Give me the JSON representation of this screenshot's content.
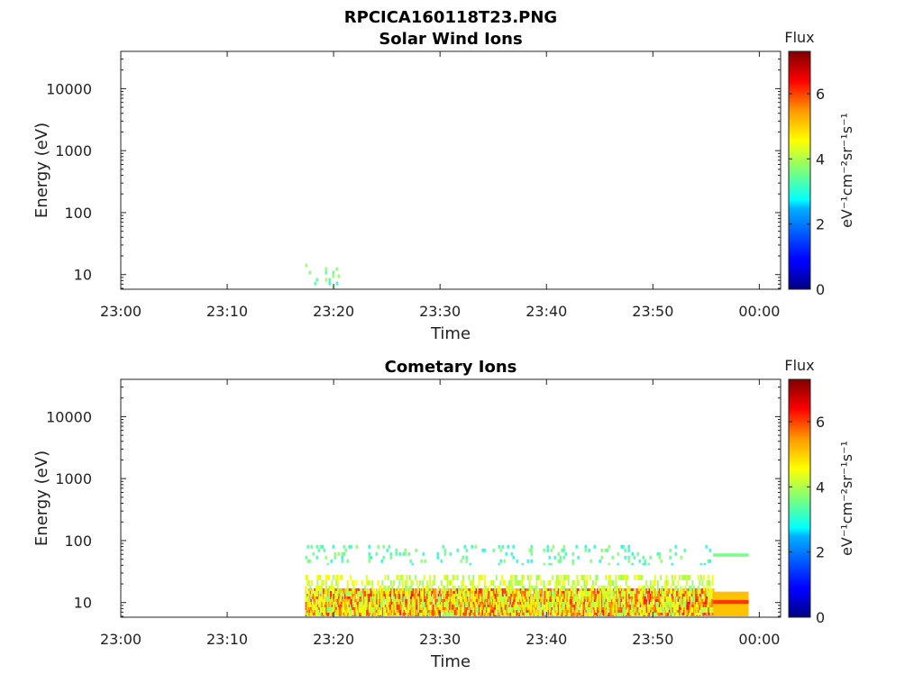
{
  "figure": {
    "title": "RPCICA160118T23.PNG"
  },
  "colorbar": {
    "label": "Flux",
    "unit_text": "eV⁻¹cm⁻²sr⁻¹s⁻¹",
    "range": [
      0,
      7.3
    ],
    "ticks": [
      "0",
      "2",
      "4",
      "6"
    ],
    "colormap": "jet"
  },
  "chart_data": [
    {
      "type": "heatmap",
      "title": "Solar Wind Ions",
      "xlabel": "Time",
      "ylabel": "Energy (eV)",
      "y_scale": "log",
      "ylim": [
        5.8,
        40000
      ],
      "xlim": [
        "23:00",
        "00:02"
      ],
      "x_ticks": [
        "23:00",
        "23:10",
        "23:20",
        "23:30",
        "23:40",
        "23:50",
        "00:00"
      ],
      "y_ticks": [
        "10",
        "100",
        "1000",
        "10000"
      ],
      "grid": false,
      "flux_features": [
        {
          "time_start": "23:17:20",
          "time_end": "23:20:40",
          "energy_low": 6,
          "energy_high": 15,
          "flux": 3.5,
          "pattern": "sparse"
        }
      ]
    },
    {
      "type": "heatmap",
      "title": "Cometary Ions",
      "xlabel": "Time",
      "ylabel": "Energy (eV)",
      "y_scale": "log",
      "ylim": [
        5.8,
        40000
      ],
      "xlim": [
        "23:00",
        "00:02"
      ],
      "x_ticks": [
        "23:00",
        "23:10",
        "23:20",
        "23:30",
        "23:40",
        "23:50",
        "00:00"
      ],
      "y_ticks": [
        "10",
        "100",
        "1000",
        "10000"
      ],
      "grid": false,
      "flux_features": [
        {
          "time_start": "23:17:20",
          "time_end": "23:55:40",
          "energy_low": 6,
          "energy_high": 17,
          "flux": 5.4,
          "pattern": "dense"
        },
        {
          "time_start": "23:17:20",
          "time_end": "23:55:40",
          "energy_low": 6,
          "energy_high": 28,
          "flux": 4.2,
          "pattern": "medium"
        },
        {
          "time_start": "23:17:20",
          "time_end": "23:55:40",
          "energy_low": 40,
          "energy_high": 85,
          "flux": 3.4,
          "pattern": "sparse"
        },
        {
          "time_start": "23:55:40",
          "time_end": "23:59:00",
          "energy_low": 6,
          "energy_high": 15,
          "flux": 5.0,
          "pattern": "block"
        },
        {
          "time_start": "23:55:40",
          "time_end": "23:59:00",
          "energy_low": 9.5,
          "energy_high": 11,
          "flux": 6.0,
          "pattern": "block"
        },
        {
          "time_start": "23:55:40",
          "time_end": "23:59:00",
          "energy_low": 55,
          "energy_high": 62,
          "flux": 3.6,
          "pattern": "block"
        }
      ]
    }
  ]
}
